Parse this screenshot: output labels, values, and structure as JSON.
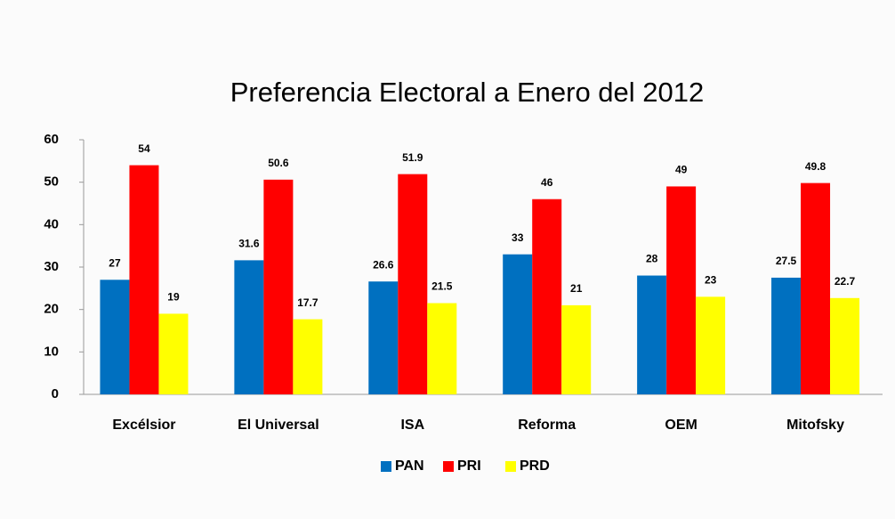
{
  "chart_data": {
    "type": "bar",
    "title": "Preferencia Electoral a Enero del 2012",
    "categories": [
      "Excélsior",
      "El Universal",
      "ISA",
      "Reforma",
      "OEM",
      "Mitofsky"
    ],
    "series": [
      {
        "name": "PAN",
        "color": "#0070c0",
        "values": [
          27,
          31.6,
          26.6,
          33,
          28,
          27.5
        ]
      },
      {
        "name": "PRI",
        "color": "#ff0000",
        "values": [
          54,
          50.6,
          51.9,
          46,
          49,
          49.8
        ]
      },
      {
        "name": "PRD",
        "color": "#ffff00",
        "values": [
          19,
          17.7,
          21.5,
          21,
          23,
          22.7
        ]
      }
    ],
    "ylim": [
      0,
      60
    ],
    "yticks": [
      0,
      10,
      20,
      30,
      40,
      50,
      60
    ],
    "grid": false,
    "legend": "bottom"
  }
}
